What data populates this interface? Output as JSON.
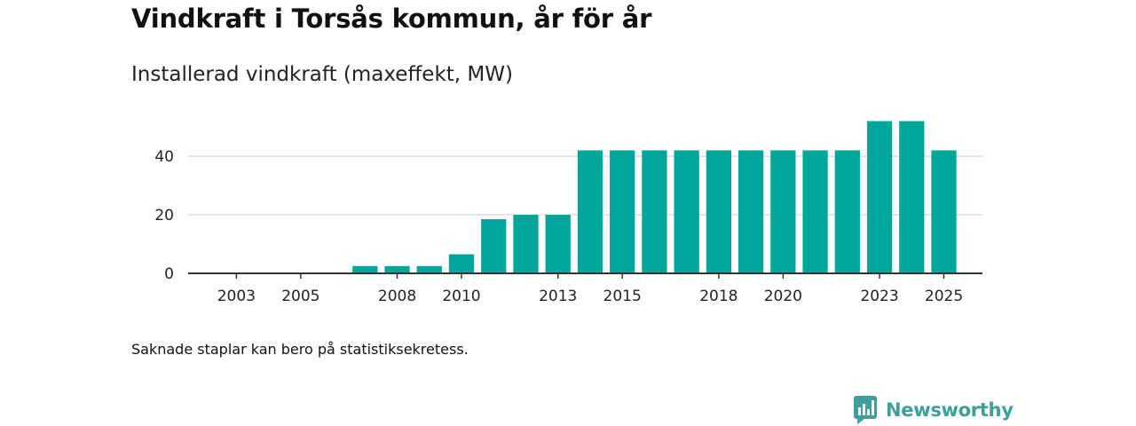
{
  "title": "Vindkraft i Torsås kommun, år för år",
  "subtitle": "Installerad vindkraft (maxeffekt, MW)",
  "note": "Saknade staplar kan bero på statistiksekretess.",
  "brand": {
    "name": "Newsworthy",
    "icon": "newsworthy-logo-icon",
    "color": "#3d9e9a"
  },
  "colors": {
    "bar": "#00a69a",
    "grid": "#dddddd",
    "axis": "#333333"
  },
  "chart_data": {
    "type": "bar",
    "title": "Vindkraft i Torsås kommun, år för år",
    "subtitle": "Installerad vindkraft (maxeffekt, MW)",
    "xlabel": "",
    "ylabel": "",
    "categories": [
      2003,
      2004,
      2005,
      2006,
      2007,
      2008,
      2009,
      2010,
      2011,
      2012,
      2013,
      2014,
      2015,
      2016,
      2017,
      2018,
      2019,
      2020,
      2021,
      2022,
      2023,
      2024,
      2025
    ],
    "values": [
      null,
      null,
      null,
      null,
      2.5,
      2.5,
      2.5,
      6.5,
      18.5,
      20,
      20,
      42,
      42,
      42,
      42,
      42,
      42,
      42,
      42,
      42,
      52,
      52,
      42
    ],
    "x_range": [
      2001.5,
      2026.2
    ],
    "ylim": [
      0,
      57
    ],
    "yticks": [
      0,
      20,
      40
    ],
    "xtick_labels": [
      "2003",
      "2005",
      "2008",
      "2010",
      "2013",
      "2015",
      "2018",
      "2020",
      "2023",
      "2025"
    ],
    "grid": true,
    "legend": "none"
  }
}
